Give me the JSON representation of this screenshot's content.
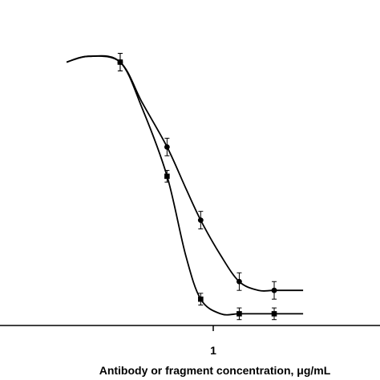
{
  "chart_data": {
    "type": "line",
    "xlabel": "Antibody or fragment concentration, μg/mL",
    "ylabel": "",
    "title": "",
    "x_scale": "log",
    "x_ticks": [
      {
        "value": 1,
        "label": "1"
      }
    ],
    "xlim": [
      0.1,
      10
    ],
    "ylim": [
      0,
      100
    ],
    "grid": false,
    "legend": "none",
    "series": [
      {
        "marker": "circle",
        "color": "#000000",
        "points": [
          {
            "x": 0.3,
            "y": 90,
            "err": 3
          },
          {
            "x": 0.55,
            "y": 61,
            "err": 3
          },
          {
            "x": 0.85,
            "y": 36,
            "err": 3
          },
          {
            "x": 1.4,
            "y": 15,
            "err": 3
          },
          {
            "x": 2.2,
            "y": 12,
            "err": 3
          }
        ],
        "curve_x": [
          0.15,
          0.2,
          0.3,
          0.4,
          0.55,
          0.7,
          0.85,
          1.1,
          1.4,
          1.8,
          2.2,
          3.2
        ],
        "curve_y": [
          90,
          92,
          90,
          76,
          61,
          47,
          36,
          24,
          15,
          12,
          12,
          12
        ]
      },
      {
        "marker": "square",
        "color": "#000000",
        "points": [
          {
            "x": 0.3,
            "y": 90,
            "err": 3
          },
          {
            "x": 0.55,
            "y": 51,
            "err": 2
          },
          {
            "x": 0.85,
            "y": 9,
            "err": 2
          },
          {
            "x": 1.4,
            "y": 4,
            "err": 2
          },
          {
            "x": 2.2,
            "y": 4,
            "err": 2
          }
        ],
        "curve_x": [
          0.15,
          0.2,
          0.3,
          0.4,
          0.55,
          0.7,
          0.85,
          1.1,
          1.4,
          1.8,
          2.2,
          3.2
        ],
        "curve_y": [
          90,
          92,
          90,
          74,
          51,
          24,
          9,
          4,
          4,
          4,
          4,
          4
        ]
      }
    ]
  }
}
